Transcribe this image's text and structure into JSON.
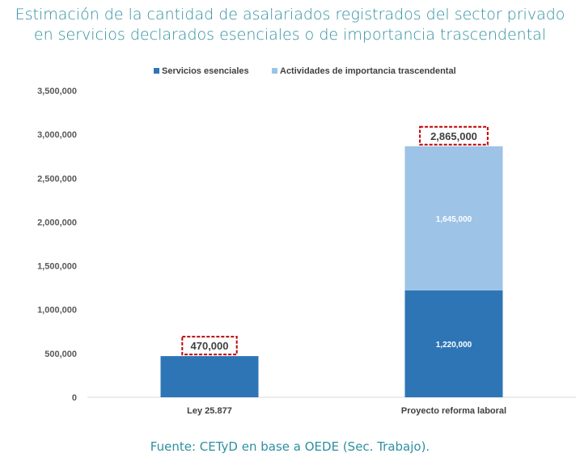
{
  "chart_data": {
    "type": "bar",
    "stacked": true,
    "title": [
      "Estimación de la cantidad de asalariados registrados del sector privado",
      "en servicios declarados esenciales o de importancia trascendental"
    ],
    "source": "Fuente: CETyD en base a OEDE (Sec. Trabajo).",
    "categories": [
      "Ley 25.877",
      "Proyecto reforma laboral"
    ],
    "series": [
      {
        "name": "Servicios esenciales",
        "values": [
          470000,
          1220000
        ],
        "color": "#2e75b6",
        "labels": [
          "",
          "1,220,000"
        ]
      },
      {
        "name": "Actividades de importancia trascendental",
        "values": [
          0,
          1645000
        ],
        "color": "#9dc3e6",
        "labels": [
          "",
          "1,645,000"
        ]
      }
    ],
    "totals": [
      "470,000",
      "2,865,000"
    ],
    "total_box_color": "#c00000",
    "ylim": [
      0,
      3500000
    ],
    "yticks": [
      "0",
      "500,000",
      "1,000,000",
      "1,500,000",
      "2,000,000",
      "2,500,000",
      "3,000,000",
      "3,500,000"
    ],
    "legend": "top",
    "grid": false
  }
}
